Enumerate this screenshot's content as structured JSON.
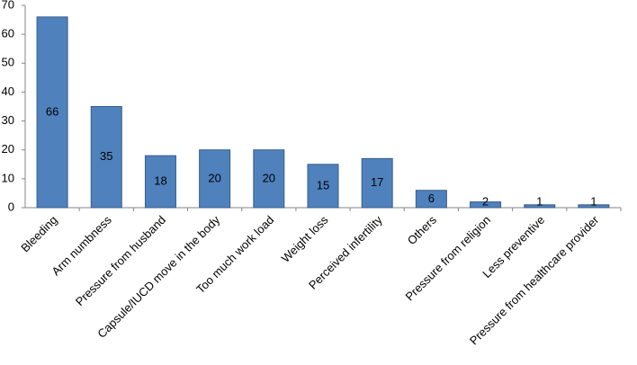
{
  "chart_data": {
    "type": "bar",
    "categories": [
      "Bleeding",
      "Arm numbness",
      "Pressure from husband",
      "Capsule/IUCD move in the body",
      "Too much work load",
      "Weight loss",
      "Perceived infertility",
      "Others",
      "Pressure from religion",
      "Less preventive",
      "Pressure from healthcare provider"
    ],
    "values": [
      66,
      35,
      18,
      20,
      20,
      15,
      17,
      6,
      2,
      1,
      1
    ],
    "color": "#4f81bd",
    "ylim": [
      0,
      70
    ],
    "yticks": [
      0,
      10,
      20,
      30,
      40,
      50,
      60,
      70
    ],
    "grid": false
  }
}
